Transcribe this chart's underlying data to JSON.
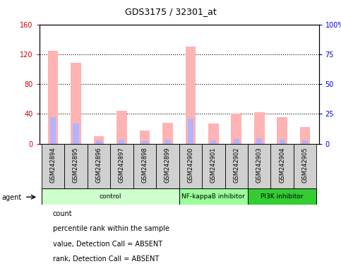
{
  "title": "GDS3175 / 32301_at",
  "samples": [
    "GSM242894",
    "GSM242895",
    "GSM242896",
    "GSM242897",
    "GSM242898",
    "GSM242899",
    "GSM242900",
    "GSM242901",
    "GSM242902",
    "GSM242903",
    "GSM242904",
    "GSM242905"
  ],
  "value_absent": [
    125,
    108,
    10,
    44,
    18,
    28,
    130,
    27,
    40,
    42,
    36,
    22
  ],
  "rank_absent": [
    36,
    27,
    4,
    5,
    3,
    5,
    34,
    4,
    6,
    7,
    5,
    4
  ],
  "left_ylim": [
    0,
    160
  ],
  "left_yticks": [
    0,
    40,
    80,
    120,
    160
  ],
  "right_ylim": [
    0,
    100
  ],
  "right_yticks": [
    0,
    25,
    50,
    75,
    100
  ],
  "right_yticklabels": [
    "0",
    "25",
    "50",
    "75",
    "100%"
  ],
  "groups": [
    {
      "label": "control",
      "start": 0,
      "end": 6,
      "color": "#ccffcc"
    },
    {
      "label": "NF-kappaB inhibitor",
      "start": 6,
      "end": 9,
      "color": "#99ff99"
    },
    {
      "label": "PI3K inhibitor",
      "start": 9,
      "end": 12,
      "color": "#33cc33"
    }
  ],
  "bar_width": 0.45,
  "value_absent_color": "#ffb3b3",
  "rank_absent_color": "#b3b3ff",
  "legend_items": [
    {
      "color": "#cc0000",
      "label": "count"
    },
    {
      "color": "#0000cc",
      "label": "percentile rank within the sample"
    },
    {
      "color": "#ffb3b3",
      "label": "value, Detection Call = ABSENT"
    },
    {
      "color": "#b3b3ff",
      "label": "rank, Detection Call = ABSENT"
    }
  ],
  "left_label_color": "#cc0000",
  "right_label_color": "#0000cc",
  "tick_label_box_color": "#d0d0d0",
  "fig_width": 4.83,
  "fig_height": 3.84,
  "dpi": 100
}
